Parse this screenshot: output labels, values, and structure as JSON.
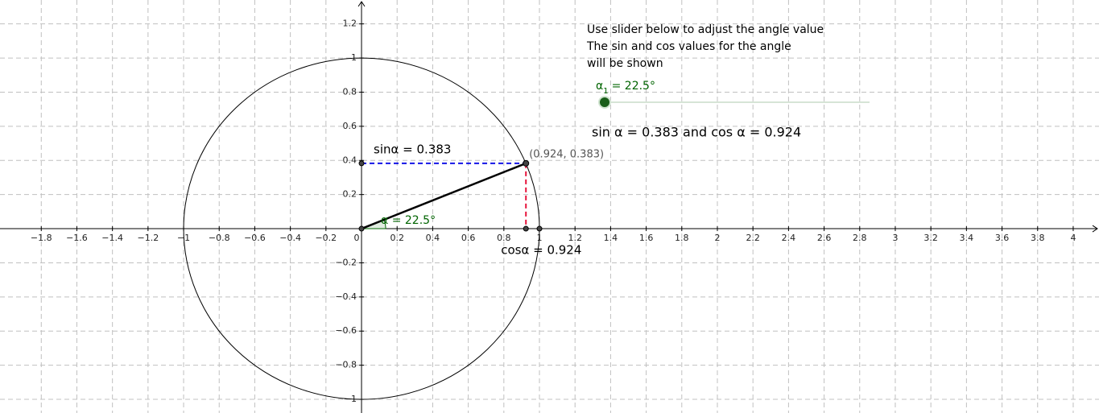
{
  "instructions": [
    "Use slider below to adjust the angle value",
    "The sin and cos values for the angle",
    "will be shown"
  ],
  "slider": {
    "name": "α",
    "subscript": "1",
    "value_label": "= 22.5°"
  },
  "result": "sin α = 0.383  and cos α = 0.924",
  "axes": {
    "xlim": [
      -2.032,
      4.145
    ],
    "ylim": [
      -1.08,
      1.34
    ],
    "xticks": [
      {
        "value": -1.8,
        "label": "−1.8"
      },
      {
        "value": -1.6,
        "label": "−1.6"
      },
      {
        "value": -1.4,
        "label": "−1.4"
      },
      {
        "value": -1.2,
        "label": "−1.2"
      },
      {
        "value": -1,
        "label": "−1"
      },
      {
        "value": -0.8,
        "label": "−0.8"
      },
      {
        "value": -0.6,
        "label": "−0.6"
      },
      {
        "value": -0.4,
        "label": "−0.4"
      },
      {
        "value": -0.2,
        "label": "−0.2"
      },
      0,
      0.2,
      0.4,
      0.6,
      0.8,
      1,
      1.2,
      1.4,
      1.6,
      1.8,
      2,
      2.2,
      2.4,
      2.6,
      2.8,
      3,
      3.2,
      3.4,
      3.6,
      3.8,
      4
    ],
    "yticks": [
      {
        "value": -1,
        "label": "−1"
      },
      {
        "value": -0.8,
        "label": "−0.8"
      },
      {
        "value": -0.6,
        "label": "−0.6"
      },
      {
        "value": -0.4,
        "label": "−0.4"
      },
      {
        "value": -0.2,
        "label": "−0.2"
      },
      0.2,
      0.4,
      0.6,
      0.8,
      1,
      1.2
    ]
  },
  "point": {
    "x": 0.924,
    "y": 0.383,
    "label": "(0.924, 0.383)"
  },
  "angle": {
    "value": 22.5,
    "label": "α = 22.5°"
  },
  "sin_label": "sinα = 0.383",
  "cos_label": "cosα = 0.924"
}
